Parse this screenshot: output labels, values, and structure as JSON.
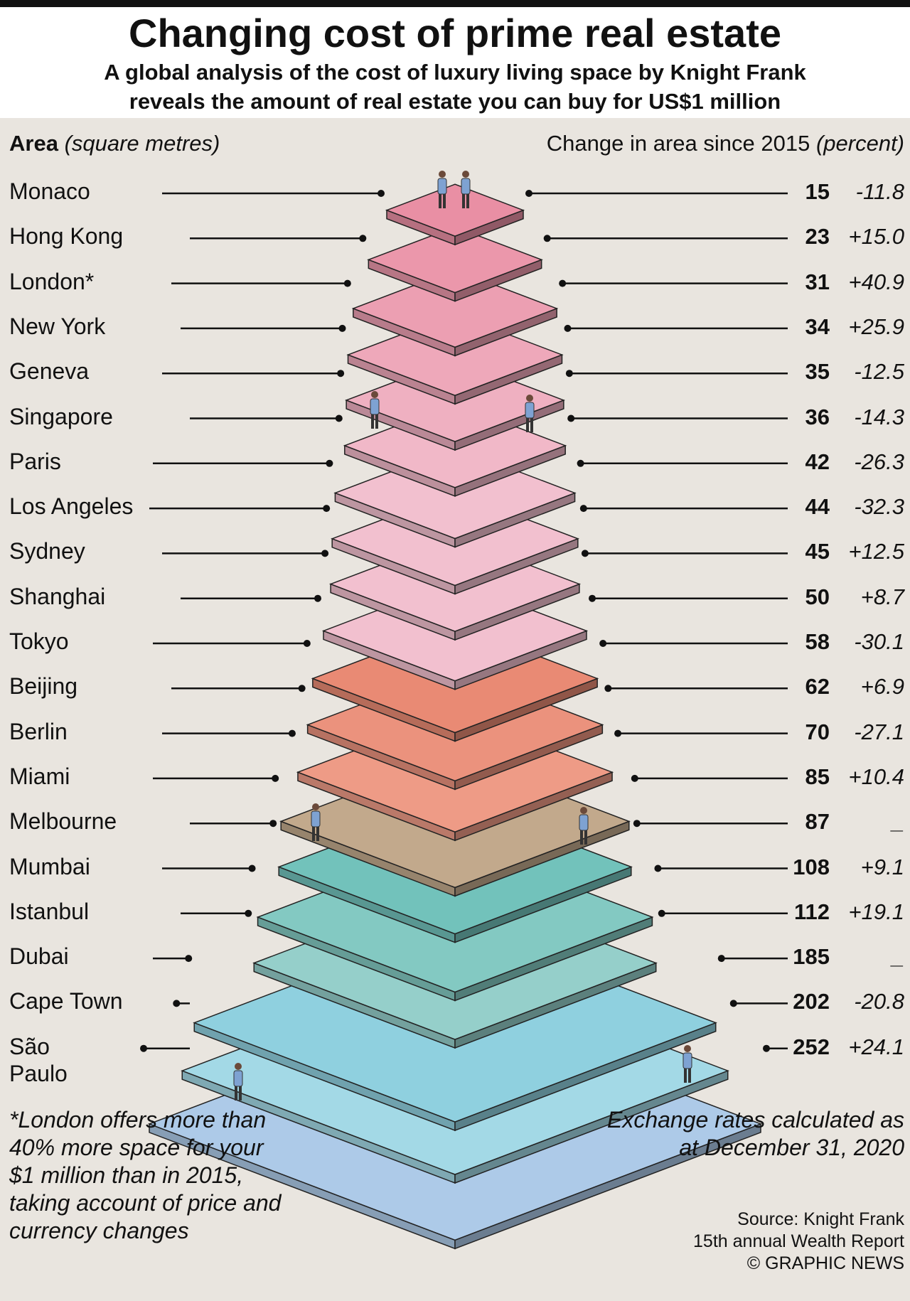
{
  "header": {
    "title": "Changing cost of prime real estate",
    "subtitle_line1": "A global analysis of the cost of luxury living space by Knight Frank",
    "subtitle_line2": "reveals the amount of real estate you can buy for US$1 million"
  },
  "columns": {
    "left_bold": "Area",
    "left_italic": "(square metres)",
    "right_plain": "Change in area since 2015",
    "right_italic": "(percent)"
  },
  "chart_data": {
    "type": "table",
    "title": "Changing cost of prime real estate",
    "value_label": "Area (square metres)",
    "change_label": "Change in area since 2015 (percent)",
    "rows": [
      {
        "city": "Monaco",
        "area": 15,
        "change": "-11.8"
      },
      {
        "city": "Hong Kong",
        "area": 23,
        "change": "+15.0"
      },
      {
        "city": "London*",
        "area": 31,
        "change": "+40.9"
      },
      {
        "city": "New York",
        "area": 34,
        "change": "+25.9"
      },
      {
        "city": "Geneva",
        "area": 35,
        "change": "-12.5"
      },
      {
        "city": "Singapore",
        "area": 36,
        "change": "-14.3"
      },
      {
        "city": "Paris",
        "area": 42,
        "change": "-26.3"
      },
      {
        "city": "Los Angeles",
        "area": 44,
        "change": "-32.3"
      },
      {
        "city": "Sydney",
        "area": 45,
        "change": "+12.5"
      },
      {
        "city": "Shanghai",
        "area": 50,
        "change": "+8.7"
      },
      {
        "city": "Tokyo",
        "area": 58,
        "change": "-30.1"
      },
      {
        "city": "Beijing",
        "area": 62,
        "change": "+6.9"
      },
      {
        "city": "Berlin",
        "area": 70,
        "change": "-27.1"
      },
      {
        "city": "Miami",
        "area": 85,
        "change": "+10.4"
      },
      {
        "city": "Melbourne",
        "area": 87,
        "change": "_"
      },
      {
        "city": "Mumbai",
        "area": 108,
        "change": "+9.1"
      },
      {
        "city": "Istanbul",
        "area": 112,
        "change": "+19.1"
      },
      {
        "city": "Dubai",
        "area": 185,
        "change": "_"
      },
      {
        "city": "Cape Town",
        "area": 202,
        "change": "-20.8"
      },
      {
        "city": "São\nPaulo",
        "area": 252,
        "change": "+24.1"
      }
    ],
    "colors": {
      "pink_top": "#e98fa4",
      "pink_light": "#f2c0cf",
      "salmon": "#e98a74",
      "tan": "#c2a98c",
      "teal": "#72c2bb",
      "aqua": "#8fd0df",
      "blue": "#a6c5e6"
    }
  },
  "notes": {
    "footnote": "*London offers more than 40% more space for your $1 million than in 2015, taking account of price and currency changes",
    "rates": "Exchange rates calculated as at December 31, 2020",
    "source_line1": "Source: Knight Frank",
    "source_line2": "15th annual Wealth Report",
    "source_line3": "© GRAPHIC NEWS"
  }
}
